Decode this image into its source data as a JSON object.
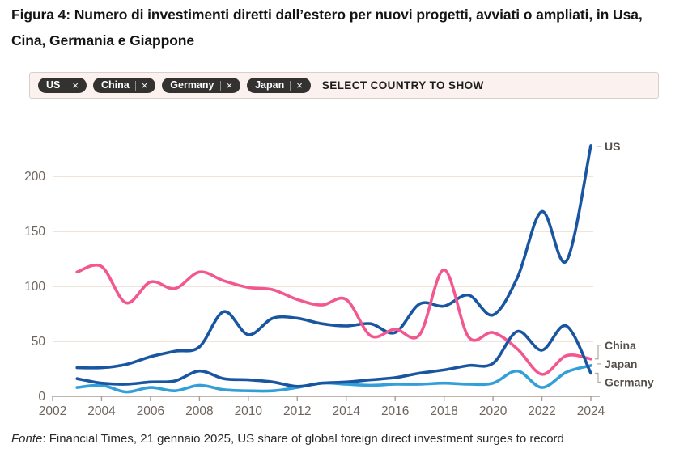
{
  "title": "Figura 4: Numero di investimenti diretti dall’estero per nuovi progetti, avviati o ampliati, in Usa, Cina, Germania e Giappone",
  "filter_bar": {
    "tags": [
      {
        "label": "US"
      },
      {
        "label": "China"
      },
      {
        "label": "Germany"
      },
      {
        "label": "Japan"
      }
    ],
    "remove_symbol": "×",
    "prompt": "SELECT COUNTRY TO SHOW"
  },
  "chart_data": {
    "type": "line",
    "x": [
      2003,
      2004,
      2005,
      2006,
      2007,
      2008,
      2009,
      2010,
      2011,
      2012,
      2013,
      2014,
      2015,
      2016,
      2017,
      2018,
      2019,
      2020,
      2021,
      2022,
      2023,
      2024
    ],
    "series": [
      {
        "name": "Japan",
        "color": "#339fd8",
        "values": [
          8,
          10,
          4,
          8,
          5,
          10,
          6,
          5,
          5,
          8,
          12,
          11,
          10,
          11,
          11,
          12,
          11,
          12,
          23,
          8,
          22,
          28
        ]
      },
      {
        "name": "US",
        "color": "#1955a0",
        "values": [
          26,
          26,
          29,
          36,
          41,
          45,
          77,
          56,
          71,
          71,
          66,
          64,
          66,
          58,
          84,
          82,
          92,
          74,
          108,
          168,
          123,
          228
        ]
      },
      {
        "name": "China",
        "color": "#f2578f",
        "values": [
          113,
          118,
          85,
          104,
          98,
          113,
          105,
          99,
          97,
          88,
          83,
          88,
          55,
          61,
          56,
          115,
          54,
          58,
          43,
          20,
          37,
          34
        ]
      },
      {
        "name": "Germany",
        "color": "#1955a0",
        "values": [
          16,
          12,
          11,
          13,
          14,
          23,
          16,
          15,
          13,
          9,
          12,
          13,
          15,
          17,
          21,
          24,
          28,
          30,
          59,
          42,
          64,
          21
        ]
      }
    ],
    "x_ticks": [
      2002,
      2004,
      2006,
      2008,
      2010,
      2012,
      2014,
      2016,
      2018,
      2020,
      2022,
      2024
    ],
    "y_ticks": [
      0,
      50,
      100,
      150,
      200
    ],
    "xlim": [
      2002,
      2024
    ],
    "ylim": [
      0,
      240
    ],
    "grid": "horizontal",
    "legend_position": "right-end-labels",
    "end_label_order": [
      "US",
      "China",
      "Japan",
      "Germany"
    ],
    "end_label_offsets": {
      "US": 1,
      "China": -17,
      "Japan": -2,
      "Germany": 11
    },
    "colors": {
      "grid": "#f0e3da",
      "axis": "#a89d94",
      "tick_label": "#6e645e",
      "end_label": "#554f49",
      "leader": "#b3a89e"
    }
  },
  "source": {
    "label": "Fonte",
    "text": ": Financial Times, 21 gennaio 2025, US share of global foreign direct investment surges to record"
  }
}
